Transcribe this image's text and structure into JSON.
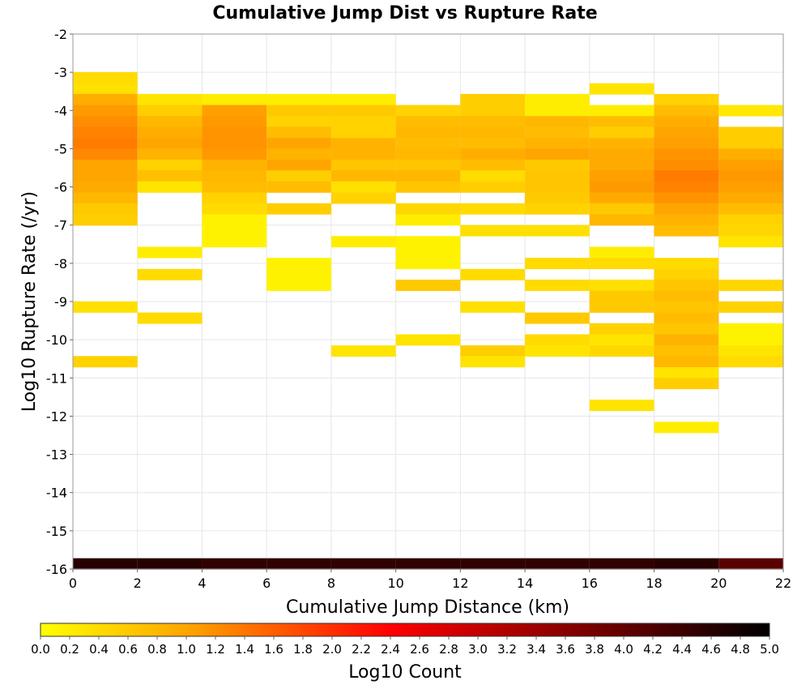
{
  "chart_data": {
    "type": "heatmap",
    "title": "Cumulative Jump Dist vs Rupture Rate",
    "xlabel": "Cumulative Jump Distance (km)",
    "ylabel": "Log10 Rupture Rate (/yr)",
    "xlim": [
      0,
      22
    ],
    "ylim": [
      -16,
      -2
    ],
    "x_ticks": [
      0,
      2,
      4,
      6,
      8,
      10,
      12,
      14,
      16,
      18,
      20,
      22
    ],
    "y_ticks": [
      -2,
      -3,
      -4,
      -5,
      -6,
      -7,
      -8,
      -9,
      -10,
      -11,
      -12,
      -13,
      -14,
      -15,
      -16
    ],
    "x_bin_width": 2,
    "y_bin_height": 0.2857,
    "grid": true,
    "colorbar": {
      "label": "Log10 Count",
      "range": [
        0.0,
        5.0
      ],
      "ticks": [
        "0.0",
        "0.2",
        "0.4",
        "0.6",
        "0.8",
        "1.0",
        "1.2",
        "1.4",
        "1.6",
        "1.8",
        "2.0",
        "2.2",
        "2.4",
        "2.6",
        "2.8",
        "3.0",
        "3.2",
        "3.4",
        "3.6",
        "3.8",
        "4.0",
        "4.2",
        "4.4",
        "4.6",
        "4.8",
        "5.0"
      ],
      "colors": [
        "#ffff00",
        "#ffa500",
        "#ff0000",
        "#000000"
      ]
    },
    "cells": [
      {
        "x": 1,
        "y": -3.14,
        "v": 0.4
      },
      {
        "x": 1,
        "y": -3.43,
        "v": 0.35
      },
      {
        "x": 1,
        "y": -3.71,
        "v": 0.9
      },
      {
        "x": 1,
        "y": -4.0,
        "v": 1.1
      },
      {
        "x": 1,
        "y": -4.29,
        "v": 1.2
      },
      {
        "x": 1,
        "y": -4.57,
        "v": 1.3
      },
      {
        "x": 1,
        "y": -4.86,
        "v": 1.35
      },
      {
        "x": 1,
        "y": -5.14,
        "v": 1.25
      },
      {
        "x": 1,
        "y": -5.43,
        "v": 1.0
      },
      {
        "x": 1,
        "y": -5.71,
        "v": 1.0
      },
      {
        "x": 1,
        "y": -6.0,
        "v": 0.95
      },
      {
        "x": 1,
        "y": -6.29,
        "v": 0.8
      },
      {
        "x": 1,
        "y": -6.57,
        "v": 0.6
      },
      {
        "x": 1,
        "y": -6.86,
        "v": 0.55
      },
      {
        "x": 1,
        "y": -9.14,
        "v": 0.35
      },
      {
        "x": 1,
        "y": -10.57,
        "v": 0.5
      },
      {
        "x": 3,
        "y": -3.71,
        "v": 0.3
      },
      {
        "x": 3,
        "y": -4.0,
        "v": 0.55
      },
      {
        "x": 3,
        "y": -4.29,
        "v": 0.8
      },
      {
        "x": 3,
        "y": -4.57,
        "v": 0.9
      },
      {
        "x": 3,
        "y": -4.86,
        "v": 1.0
      },
      {
        "x": 3,
        "y": -5.14,
        "v": 0.85
      },
      {
        "x": 3,
        "y": -5.43,
        "v": 0.5
      },
      {
        "x": 3,
        "y": -5.71,
        "v": 0.7
      },
      {
        "x": 3,
        "y": -6.0,
        "v": 0.3
      },
      {
        "x": 3,
        "y": -7.71,
        "v": 0.2
      },
      {
        "x": 3,
        "y": -8.29,
        "v": 0.4
      },
      {
        "x": 3,
        "y": -9.43,
        "v": 0.4
      },
      {
        "x": 5,
        "y": -3.71,
        "v": 0.2
      },
      {
        "x": 5,
        "y": -4.0,
        "v": 1.05
      },
      {
        "x": 5,
        "y": -4.29,
        "v": 1.1
      },
      {
        "x": 5,
        "y": -4.57,
        "v": 1.15
      },
      {
        "x": 5,
        "y": -4.86,
        "v": 1.15
      },
      {
        "x": 5,
        "y": -5.14,
        "v": 1.1
      },
      {
        "x": 5,
        "y": -5.43,
        "v": 0.85
      },
      {
        "x": 5,
        "y": -5.71,
        "v": 0.8
      },
      {
        "x": 5,
        "y": -6.0,
        "v": 0.75
      },
      {
        "x": 5,
        "y": -6.29,
        "v": 0.5
      },
      {
        "x": 5,
        "y": -6.57,
        "v": 0.4
      },
      {
        "x": 5,
        "y": -6.86,
        "v": 0.15
      },
      {
        "x": 5,
        "y": -7.14,
        "v": 0.15
      },
      {
        "x": 5,
        "y": -7.43,
        "v": 0.15
      },
      {
        "x": 7,
        "y": -3.71,
        "v": 0.2
      },
      {
        "x": 7,
        "y": -4.0,
        "v": 0.6
      },
      {
        "x": 7,
        "y": -4.29,
        "v": 0.5
      },
      {
        "x": 7,
        "y": -4.57,
        "v": 0.75
      },
      {
        "x": 7,
        "y": -4.86,
        "v": 1.0
      },
      {
        "x": 7,
        "y": -5.14,
        "v": 0.85
      },
      {
        "x": 7,
        "y": -5.43,
        "v": 1.0
      },
      {
        "x": 7,
        "y": -5.71,
        "v": 0.55
      },
      {
        "x": 7,
        "y": -6.0,
        "v": 0.75
      },
      {
        "x": 7,
        "y": -6.57,
        "v": 0.55
      },
      {
        "x": 7,
        "y": -8.0,
        "v": 0.15
      },
      {
        "x": 7,
        "y": -8.29,
        "v": 0.15
      },
      {
        "x": 7,
        "y": -8.57,
        "v": 0.15
      },
      {
        "x": 9,
        "y": -3.71,
        "v": 0.2
      },
      {
        "x": 9,
        "y": -4.0,
        "v": 0.6
      },
      {
        "x": 9,
        "y": -4.29,
        "v": 0.5
      },
      {
        "x": 9,
        "y": -4.57,
        "v": 0.5
      },
      {
        "x": 9,
        "y": -4.86,
        "v": 0.85
      },
      {
        "x": 9,
        "y": -5.14,
        "v": 0.85
      },
      {
        "x": 9,
        "y": -5.43,
        "v": 0.65
      },
      {
        "x": 9,
        "y": -5.71,
        "v": 0.8
      },
      {
        "x": 9,
        "y": -6.0,
        "v": 0.35
      },
      {
        "x": 9,
        "y": -6.29,
        "v": 0.5
      },
      {
        "x": 9,
        "y": -7.43,
        "v": 0.2
      },
      {
        "x": 9,
        "y": -10.29,
        "v": 0.3
      },
      {
        "x": 11,
        "y": -4.0,
        "v": 0.5
      },
      {
        "x": 11,
        "y": -4.29,
        "v": 0.75
      },
      {
        "x": 11,
        "y": -4.57,
        "v": 0.8
      },
      {
        "x": 11,
        "y": -4.86,
        "v": 0.75
      },
      {
        "x": 11,
        "y": -5.14,
        "v": 0.8
      },
      {
        "x": 11,
        "y": -5.43,
        "v": 0.65
      },
      {
        "x": 11,
        "y": -5.71,
        "v": 0.8
      },
      {
        "x": 11,
        "y": -6.0,
        "v": 0.65
      },
      {
        "x": 11,
        "y": -6.57,
        "v": 0.45
      },
      {
        "x": 11,
        "y": -6.86,
        "v": 0.2
      },
      {
        "x": 11,
        "y": -7.43,
        "v": 0.15
      },
      {
        "x": 11,
        "y": -7.71,
        "v": 0.15
      },
      {
        "x": 11,
        "y": -8.0,
        "v": 0.15
      },
      {
        "x": 11,
        "y": -8.57,
        "v": 0.6
      },
      {
        "x": 11,
        "y": -10.0,
        "v": 0.3
      },
      {
        "x": 13,
        "y": -3.71,
        "v": 0.55
      },
      {
        "x": 13,
        "y": -4.0,
        "v": 0.55
      },
      {
        "x": 13,
        "y": -4.29,
        "v": 0.75
      },
      {
        "x": 13,
        "y": -4.57,
        "v": 0.8
      },
      {
        "x": 13,
        "y": -4.86,
        "v": 0.75
      },
      {
        "x": 13,
        "y": -5.14,
        "v": 0.9
      },
      {
        "x": 13,
        "y": -5.43,
        "v": 0.75
      },
      {
        "x": 13,
        "y": -5.71,
        "v": 0.4
      },
      {
        "x": 13,
        "y": -6.0,
        "v": 0.55
      },
      {
        "x": 13,
        "y": -6.57,
        "v": 0.4
      },
      {
        "x": 13,
        "y": -7.14,
        "v": 0.35
      },
      {
        "x": 13,
        "y": -8.29,
        "v": 0.4
      },
      {
        "x": 13,
        "y": -9.14,
        "v": 0.35
      },
      {
        "x": 13,
        "y": -10.29,
        "v": 0.55
      },
      {
        "x": 13,
        "y": -10.57,
        "v": 0.3
      },
      {
        "x": 15,
        "y": -3.71,
        "v": 0.2
      },
      {
        "x": 15,
        "y": -4.0,
        "v": 0.2
      },
      {
        "x": 15,
        "y": -4.29,
        "v": 0.8
      },
      {
        "x": 15,
        "y": -4.57,
        "v": 0.75
      },
      {
        "x": 15,
        "y": -4.86,
        "v": 0.85
      },
      {
        "x": 15,
        "y": -5.14,
        "v": 1.0
      },
      {
        "x": 15,
        "y": -5.43,
        "v": 0.6
      },
      {
        "x": 15,
        "y": -5.71,
        "v": 0.65
      },
      {
        "x": 15,
        "y": -6.0,
        "v": 0.65
      },
      {
        "x": 15,
        "y": -6.29,
        "v": 0.6
      },
      {
        "x": 15,
        "y": -6.57,
        "v": 0.5
      },
      {
        "x": 15,
        "y": -7.14,
        "v": 0.35
      },
      {
        "x": 15,
        "y": -8.0,
        "v": 0.4
      },
      {
        "x": 15,
        "y": -8.57,
        "v": 0.4
      },
      {
        "x": 15,
        "y": -9.43,
        "v": 0.6
      },
      {
        "x": 15,
        "y": -10.0,
        "v": 0.4
      },
      {
        "x": 15,
        "y": -10.29,
        "v": 0.3
      },
      {
        "x": 17,
        "y": -3.43,
        "v": 0.3
      },
      {
        "x": 17,
        "y": -4.0,
        "v": 0.2
      },
      {
        "x": 17,
        "y": -4.29,
        "v": 0.75
      },
      {
        "x": 17,
        "y": -4.57,
        "v": 0.55
      },
      {
        "x": 17,
        "y": -4.86,
        "v": 0.85
      },
      {
        "x": 17,
        "y": -5.14,
        "v": 0.95
      },
      {
        "x": 17,
        "y": -5.43,
        "v": 0.95
      },
      {
        "x": 17,
        "y": -5.71,
        "v": 1.05
      },
      {
        "x": 17,
        "y": -6.0,
        "v": 1.1
      },
      {
        "x": 17,
        "y": -6.29,
        "v": 0.95
      },
      {
        "x": 17,
        "y": -6.57,
        "v": 0.6
      },
      {
        "x": 17,
        "y": -6.86,
        "v": 0.8
      },
      {
        "x": 17,
        "y": -7.71,
        "v": 0.2
      },
      {
        "x": 17,
        "y": -8.0,
        "v": 0.4
      },
      {
        "x": 17,
        "y": -8.57,
        "v": 0.35
      },
      {
        "x": 17,
        "y": -8.86,
        "v": 0.6
      },
      {
        "x": 17,
        "y": -9.14,
        "v": 0.6
      },
      {
        "x": 17,
        "y": -9.71,
        "v": 0.5
      },
      {
        "x": 17,
        "y": -10.0,
        "v": 0.3
      },
      {
        "x": 17,
        "y": -10.29,
        "v": 0.45
      },
      {
        "x": 17,
        "y": -11.71,
        "v": 0.3
      },
      {
        "x": 19,
        "y": -3.71,
        "v": 0.5
      },
      {
        "x": 19,
        "y": -4.0,
        "v": 0.75
      },
      {
        "x": 19,
        "y": -4.29,
        "v": 0.9
      },
      {
        "x": 19,
        "y": -4.57,
        "v": 1.0
      },
      {
        "x": 19,
        "y": -4.86,
        "v": 1.05
      },
      {
        "x": 19,
        "y": -5.14,
        "v": 1.15
      },
      {
        "x": 19,
        "y": -5.43,
        "v": 1.2
      },
      {
        "x": 19,
        "y": -5.71,
        "v": 1.35
      },
      {
        "x": 19,
        "y": -6.0,
        "v": 1.3
      },
      {
        "x": 19,
        "y": -6.29,
        "v": 1.15
      },
      {
        "x": 19,
        "y": -6.57,
        "v": 1.0
      },
      {
        "x": 19,
        "y": -6.86,
        "v": 0.85
      },
      {
        "x": 19,
        "y": -7.14,
        "v": 0.75
      },
      {
        "x": 19,
        "y": -8.0,
        "v": 0.4
      },
      {
        "x": 19,
        "y": -8.29,
        "v": 0.5
      },
      {
        "x": 19,
        "y": -8.57,
        "v": 0.65
      },
      {
        "x": 19,
        "y": -8.86,
        "v": 0.75
      },
      {
        "x": 19,
        "y": -9.14,
        "v": 0.65
      },
      {
        "x": 19,
        "y": -9.43,
        "v": 0.75
      },
      {
        "x": 19,
        "y": -9.71,
        "v": 0.65
      },
      {
        "x": 19,
        "y": -10.0,
        "v": 0.85
      },
      {
        "x": 19,
        "y": -10.29,
        "v": 0.7
      },
      {
        "x": 19,
        "y": -10.57,
        "v": 0.8
      },
      {
        "x": 19,
        "y": -10.86,
        "v": 0.3
      },
      {
        "x": 19,
        "y": -11.14,
        "v": 0.55
      },
      {
        "x": 19,
        "y": -12.29,
        "v": 0.2
      },
      {
        "x": 21,
        "y": -4.0,
        "v": 0.25
      },
      {
        "x": 21,
        "y": -4.57,
        "v": 0.55
      },
      {
        "x": 21,
        "y": -4.86,
        "v": 0.55
      },
      {
        "x": 21,
        "y": -5.14,
        "v": 0.9
      },
      {
        "x": 21,
        "y": -5.43,
        "v": 1.05
      },
      {
        "x": 21,
        "y": -5.71,
        "v": 1.1
      },
      {
        "x": 21,
        "y": -6.0,
        "v": 1.05
      },
      {
        "x": 21,
        "y": -6.29,
        "v": 0.95
      },
      {
        "x": 21,
        "y": -6.57,
        "v": 0.75
      },
      {
        "x": 21,
        "y": -6.86,
        "v": 0.5
      },
      {
        "x": 21,
        "y": -7.14,
        "v": 0.45
      },
      {
        "x": 21,
        "y": -7.43,
        "v": 0.3
      },
      {
        "x": 21,
        "y": -8.57,
        "v": 0.45
      },
      {
        "x": 21,
        "y": -9.14,
        "v": 0.5
      },
      {
        "x": 21,
        "y": -9.71,
        "v": 0.15
      },
      {
        "x": 21,
        "y": -10.0,
        "v": 0.15
      },
      {
        "x": 21,
        "y": -10.29,
        "v": 0.3
      },
      {
        "x": 21,
        "y": -10.57,
        "v": 0.4
      },
      {
        "x": 1,
        "y": -15.86,
        "v": 4.6
      },
      {
        "x": 3,
        "y": -15.86,
        "v": 4.6
      },
      {
        "x": 5,
        "y": -15.86,
        "v": 4.5
      },
      {
        "x": 7,
        "y": -15.86,
        "v": 4.5
      },
      {
        "x": 9,
        "y": -15.86,
        "v": 4.5
      },
      {
        "x": 11,
        "y": -15.86,
        "v": 4.5
      },
      {
        "x": 13,
        "y": -15.86,
        "v": 4.5
      },
      {
        "x": 15,
        "y": -15.86,
        "v": 4.5
      },
      {
        "x": 17,
        "y": -15.86,
        "v": 4.5
      },
      {
        "x": 19,
        "y": -15.86,
        "v": 4.6
      },
      {
        "x": 21,
        "y": -15.86,
        "v": 4.1
      }
    ]
  }
}
